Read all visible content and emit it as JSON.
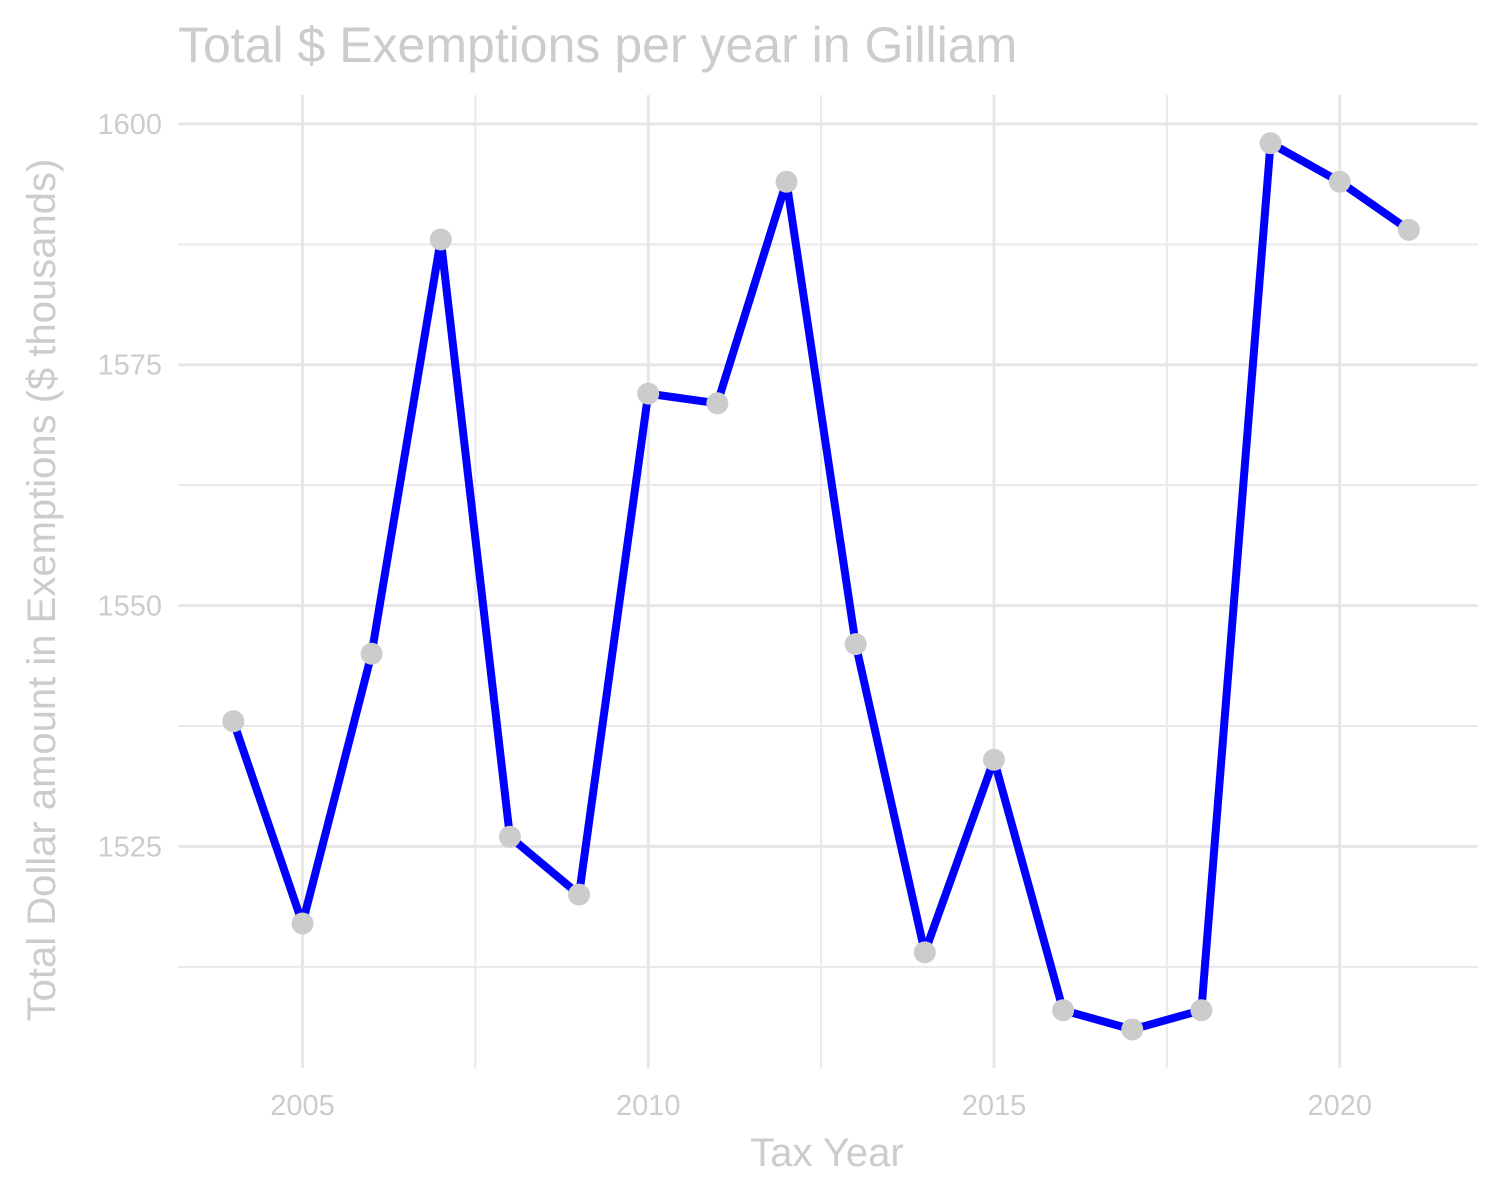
{
  "chart_data": {
    "type": "line",
    "title": "Total $ Exemptions per year in Gilliam",
    "xlabel": "Tax Year",
    "ylabel": "Total Dollar amount in Exemptions ($ thousands)",
    "xlim": [
      2003.2,
      2022.0
    ],
    "ylim": [
      1502,
      1603
    ],
    "x_ticks": [
      2005,
      2010,
      2015,
      2020
    ],
    "x_tick_labels": [
      "2005",
      "2010",
      "2015",
      "2020"
    ],
    "x_minor_ticks": [
      2007.5,
      2012.5,
      2017.5
    ],
    "y_ticks": [
      1525,
      1550,
      1575,
      1600
    ],
    "y_tick_labels": [
      "1525",
      "1550",
      "1575",
      "1600"
    ],
    "y_minor_ticks": [
      1512.5,
      1537.5,
      1562.5,
      1587.5
    ],
    "grid": true,
    "legend": "none",
    "colors": {
      "line": "#0000ff",
      "points": "#cccccc",
      "text": "#cccccc",
      "grid": "#e6e6e6"
    },
    "x": [
      2004,
      2005,
      2006,
      2007,
      2008,
      2009,
      2010,
      2011,
      2012,
      2013,
      2014,
      2015,
      2016,
      2017,
      2018,
      2019,
      2020,
      2021
    ],
    "series": [
      {
        "values": [
          1538,
          1517,
          1545,
          1588,
          1526,
          1520,
          1572,
          1571,
          1594,
          1546,
          1514,
          1534,
          1508,
          1506,
          1508,
          1598,
          1594,
          1589
        ]
      }
    ]
  }
}
